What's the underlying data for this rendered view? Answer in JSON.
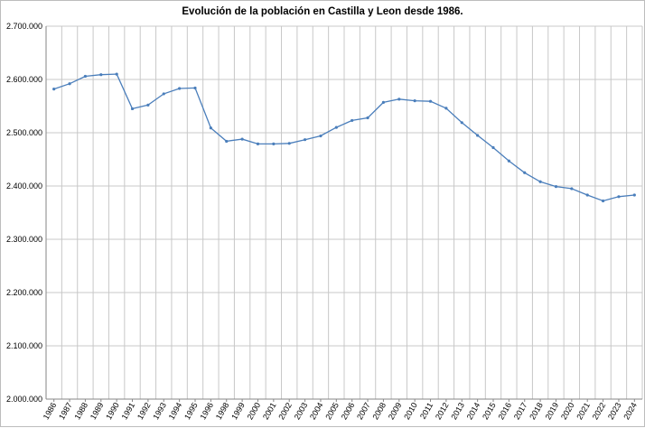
{
  "chart_data": {
    "type": "line",
    "title": "Evolución de la población en Castilla y Leon desde 1986.",
    "xlabel": "",
    "ylabel": "",
    "ylim": [
      2000000,
      2700000
    ],
    "yticks": [
      2000000,
      2100000,
      2200000,
      2300000,
      2400000,
      2500000,
      2600000,
      2700000
    ],
    "ytick_labels": [
      "2.000.000",
      "2.100.000",
      "2.200.000",
      "2.300.000",
      "2.400.000",
      "2.500.000",
      "2.600.000",
      "2.700.000"
    ],
    "grid": true,
    "legend": "none",
    "line_color": "#4a7ebb",
    "categories": [
      "1986",
      "1987",
      "1988",
      "1989",
      "1990",
      "1991",
      "1992",
      "1993",
      "1994",
      "1995",
      "1996",
      "1998",
      "1999",
      "2000",
      "2001",
      "2002",
      "2003",
      "2004",
      "2005",
      "2006",
      "2007",
      "2008",
      "2009",
      "2010",
      "2011",
      "2012",
      "2013",
      "2014",
      "2015",
      "2016",
      "2017",
      "2018",
      "2019",
      "2020",
      "2021",
      "2022",
      "2023",
      "2024"
    ],
    "values": [
      2582000,
      2592000,
      2606000,
      2609000,
      2610000,
      2545000,
      2552000,
      2573000,
      2583000,
      2584000,
      2509000,
      2484000,
      2488000,
      2479000,
      2479000,
      2480000,
      2487000,
      2494000,
      2510000,
      2523000,
      2528000,
      2557000,
      2563000,
      2560000,
      2559000,
      2546000,
      2519000,
      2495000,
      2472000,
      2447000,
      2425000,
      2408000,
      2399000,
      2395000,
      2383000,
      2372000,
      2380000,
      2383000
    ]
  }
}
